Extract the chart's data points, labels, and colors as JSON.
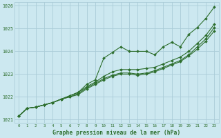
{
  "title": "Graphe pression niveau de la mer (hPa)",
  "bg_color": "#cce8f0",
  "grid_color": "#aaccd8",
  "line_color": "#2d6e2d",
  "x_min": 0,
  "x_max": 23,
  "y_min": 1021,
  "y_max": 1026,
  "y_ticks": [
    1021,
    1022,
    1023,
    1024,
    1025,
    1026
  ],
  "x_ticks": [
    0,
    1,
    2,
    3,
    4,
    5,
    6,
    7,
    8,
    9,
    10,
    11,
    12,
    13,
    14,
    15,
    16,
    17,
    18,
    19,
    20,
    21,
    22,
    23
  ],
  "lines": [
    {
      "x": [
        0,
        1,
        2,
        3,
        4,
        5,
        6,
        7,
        8,
        9,
        10,
        11,
        12,
        13,
        14,
        15,
        16,
        17,
        18,
        19,
        20,
        21,
        22,
        23
      ],
      "y": [
        1021.15,
        1021.5,
        1021.55,
        1021.65,
        1021.75,
        1021.9,
        1022.05,
        1022.2,
        1022.55,
        1022.75,
        1023.7,
        1023.95,
        1024.2,
        1024.0,
        1024.0,
        1024.0,
        1023.85,
        1024.2,
        1024.4,
        1024.2,
        1024.75,
        1025.05,
        1025.45,
        1025.95
      ]
    },
    {
      "x": [
        0,
        1,
        2,
        3,
        4,
        5,
        6,
        7,
        8,
        9,
        10,
        11,
        12,
        13,
        14,
        15,
        16,
        17,
        18,
        19,
        20,
        21,
        22,
        23
      ],
      "y": [
        1021.15,
        1021.5,
        1021.55,
        1021.65,
        1021.75,
        1021.9,
        1022.05,
        1022.2,
        1022.45,
        1022.65,
        1022.9,
        1023.1,
        1023.2,
        1023.2,
        1023.2,
        1023.25,
        1023.3,
        1023.45,
        1023.6,
        1023.75,
        1024.0,
        1024.35,
        1024.7,
        1025.2
      ]
    },
    {
      "x": [
        0,
        1,
        2,
        3,
        4,
        5,
        6,
        7,
        8,
        9,
        10,
        11,
        12,
        13,
        14,
        15,
        16,
        17,
        18,
        19,
        20,
        21,
        22,
        23
      ],
      "y": [
        1021.15,
        1021.5,
        1021.55,
        1021.65,
        1021.75,
        1021.9,
        1022.0,
        1022.15,
        1022.4,
        1022.6,
        1022.8,
        1022.95,
        1023.05,
        1023.05,
        1023.0,
        1023.05,
        1023.15,
        1023.3,
        1023.45,
        1023.6,
        1023.85,
        1024.2,
        1024.55,
        1025.05
      ]
    },
    {
      "x": [
        0,
        1,
        2,
        3,
        4,
        5,
        6,
        7,
        8,
        9,
        10,
        11,
        12,
        13,
        14,
        15,
        16,
        17,
        18,
        19,
        20,
        21,
        22,
        23
      ],
      "y": [
        1021.15,
        1021.5,
        1021.55,
        1021.65,
        1021.75,
        1021.9,
        1022.0,
        1022.1,
        1022.35,
        1022.55,
        1022.75,
        1022.9,
        1023.0,
        1023.0,
        1022.95,
        1023.0,
        1023.1,
        1023.25,
        1023.4,
        1023.55,
        1023.8,
        1024.1,
        1024.45,
        1024.9
      ]
    }
  ]
}
